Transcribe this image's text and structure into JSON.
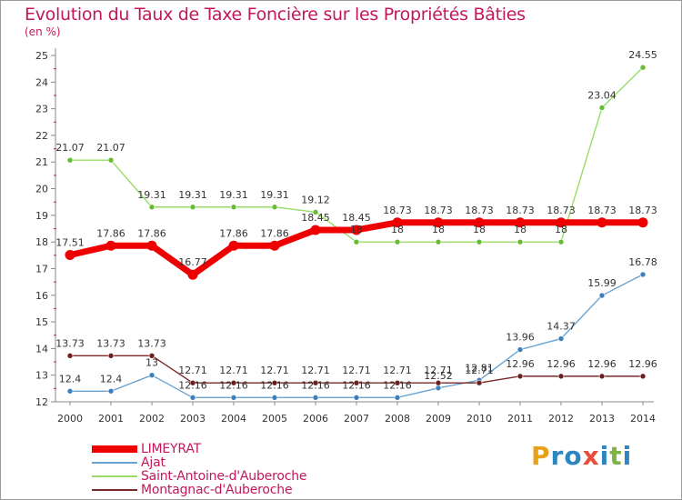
{
  "title": "Evolution du Taux de Taxe Foncière sur les Propriétés Bâties",
  "subtitle": "(en %)",
  "logo": {
    "text": "Proxiti",
    "letters": [
      {
        "ch": "P",
        "color": "#e8a21a"
      },
      {
        "ch": "r",
        "color": "#2e86c1"
      },
      {
        "ch": "o",
        "color": "#2e86c1"
      },
      {
        "ch": "x",
        "color": "#e74c3c"
      },
      {
        "ch": "i",
        "color": "#2e86c1"
      },
      {
        "ch": "t",
        "color": "#7cb342"
      },
      {
        "ch": "i",
        "color": "#2e86c1"
      }
    ]
  },
  "chart_data": {
    "type": "line",
    "title": "Evolution du Taux de Taxe Foncière sur les Propriétés Bâties",
    "ylabel": "(en %)",
    "xlabel": "",
    "ylim": [
      12,
      25
    ],
    "grid": false,
    "legend_position": "bottom-left",
    "x": [
      "2000",
      "2001",
      "2002",
      "2003",
      "2004",
      "2005",
      "2006",
      "2007",
      "2008",
      "2009",
      "2010",
      "2011",
      "2012",
      "2013",
      "2014"
    ],
    "y_ticks": [
      12,
      13,
      14,
      15,
      16,
      17,
      18,
      19,
      20,
      21,
      22,
      23,
      24,
      25
    ],
    "series": [
      {
        "name": "LIMEYRAT",
        "color": "#ee0000",
        "marker_color": "#ee0000",
        "emphasis": "thick",
        "values": [
          17.51,
          17.86,
          17.86,
          16.77,
          17.86,
          17.86,
          18.45,
          18.45,
          18.73,
          18.73,
          18.73,
          18.73,
          18.73,
          18.73,
          18.73
        ],
        "labels": [
          "17.51",
          "17.86",
          "17.86",
          "16.77",
          "17.86",
          "17.86",
          "18.45",
          "18.45",
          "18.73",
          "18.73",
          "18.73",
          "18.73",
          "18.73",
          "18.73",
          "18.73"
        ]
      },
      {
        "name": "Ajat",
        "color": "#6aa3cf",
        "marker_color": "#3b7fbd",
        "emphasis": "thin",
        "values": [
          12.4,
          12.4,
          13,
          12.16,
          12.16,
          12.16,
          12.16,
          12.16,
          12.16,
          12.52,
          12.81,
          13.96,
          14.37,
          15.99,
          16.78
        ],
        "labels": [
          "12.4",
          "12.4",
          "13",
          "12.16",
          "12.16",
          "12.16",
          "12.16",
          "12.16",
          "12.16",
          "12.52",
          "12.81",
          "13.96",
          "14.37",
          "15.99",
          "16.78"
        ]
      },
      {
        "name": "Saint-Antoine-d'Auberoche",
        "color": "#99dd66",
        "marker_color": "#66bb33",
        "emphasis": "thin",
        "values": [
          21.07,
          21.07,
          19.31,
          19.31,
          19.31,
          19.31,
          19.12,
          18,
          18,
          18,
          18,
          18,
          18,
          23.04,
          24.55
        ],
        "labels": [
          "21.07",
          "21.07",
          "19.31",
          "19.31",
          "19.31",
          "19.31",
          "19.12",
          "18",
          "18",
          "18",
          "18",
          "18",
          "18",
          "23.04",
          "24.55"
        ]
      },
      {
        "name": "Montagnac-d'Auberoche",
        "color": "#7a2a2a",
        "marker_color": "#6b1f1f",
        "emphasis": "thin",
        "values": [
          13.73,
          13.73,
          13.73,
          12.71,
          12.71,
          12.71,
          12.71,
          12.71,
          12.71,
          12.71,
          12.71,
          12.96,
          12.96,
          12.96,
          12.96
        ],
        "labels": [
          "13.73",
          "13.73",
          "13.73",
          "12.71",
          "12.71",
          "12.71",
          "12.71",
          "12.71",
          "12.71",
          "12.71",
          "12.71",
          "12.96",
          "12.96",
          "12.96",
          "12.96"
        ]
      }
    ]
  }
}
